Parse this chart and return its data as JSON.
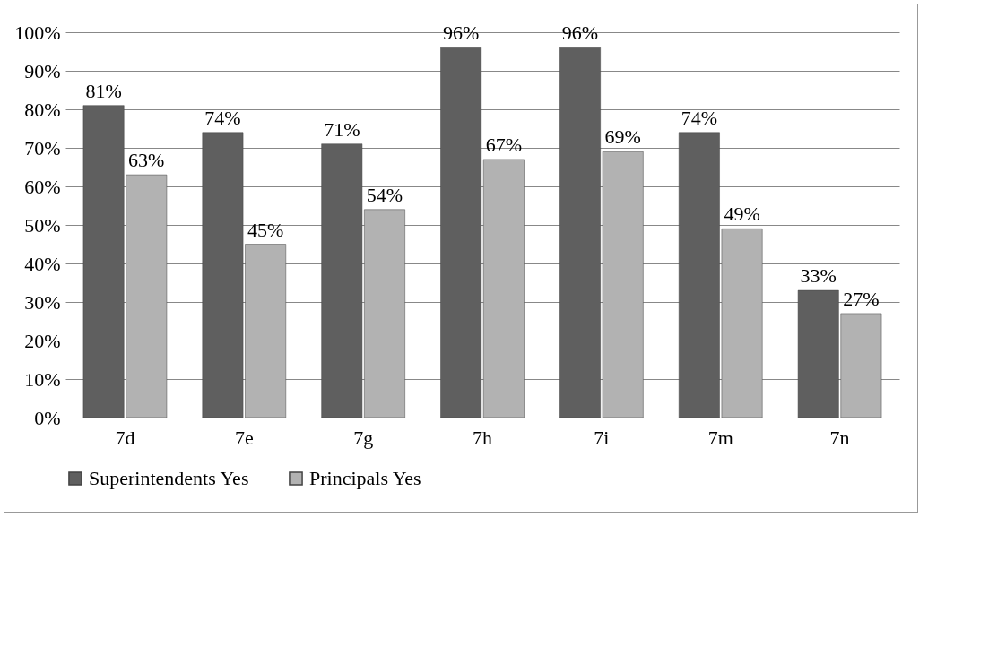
{
  "chart_data": {
    "type": "bar",
    "categories": [
      "7d",
      "7e",
      "7g",
      "7h",
      "7i",
      "7m",
      "7n"
    ],
    "series": [
      {
        "name": "Superintendents Yes",
        "color": "#5f5f5f",
        "values": [
          81,
          74,
          71,
          96,
          96,
          74,
          33
        ],
        "value_labels": [
          "81%",
          "74%",
          "71%",
          "96%",
          "96%",
          "74%",
          "33%"
        ]
      },
      {
        "name": "Principals Yes",
        "color": "#b2b2b2",
        "values": [
          63,
          45,
          54,
          67,
          69,
          49,
          27
        ],
        "value_labels": [
          "63%",
          "45%",
          "54%",
          "67%",
          "69%",
          "49%",
          "27%"
        ]
      }
    ],
    "ylim": [
      0,
      100
    ],
    "yticks": [
      {
        "value": 0,
        "label": "0%"
      },
      {
        "value": 10,
        "label": "10%"
      },
      {
        "value": 20,
        "label": "20%"
      },
      {
        "value": 30,
        "label": "30%"
      },
      {
        "value": 40,
        "label": "40%"
      },
      {
        "value": 50,
        "label": "50%"
      },
      {
        "value": 60,
        "label": "60%"
      },
      {
        "value": 70,
        "label": "70%"
      },
      {
        "value": 80,
        "label": "80%"
      },
      {
        "value": 90,
        "label": "90%"
      },
      {
        "value": 100,
        "label": "100%"
      }
    ],
    "grid": true,
    "legend": "bottom"
  }
}
